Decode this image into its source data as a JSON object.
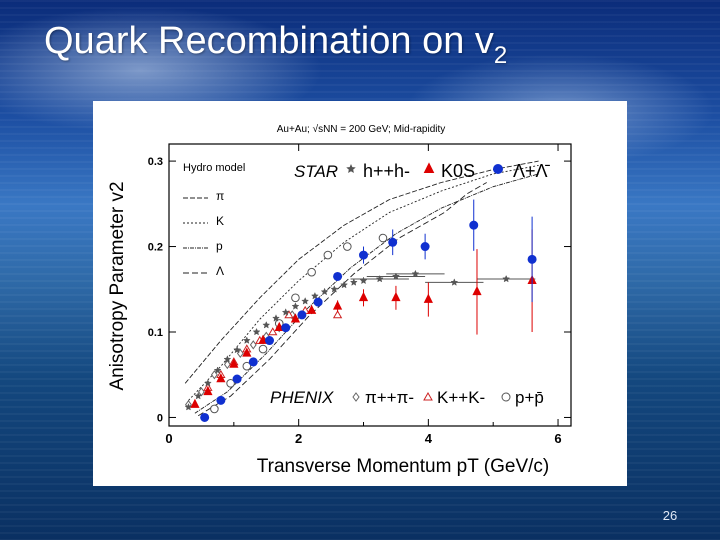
{
  "slide": {
    "title": "Quark Recombination on v",
    "title_subscript": "2",
    "page_number": "26"
  },
  "chart_data": {
    "type": "scatter",
    "header": "Au+Au; √sNN = 200 GeV; Mid-rapidity",
    "xlabel": "Transverse Momentum pT (GeV/c)",
    "ylabel": "Anisotropy Parameter v2",
    "xlim": [
      0,
      6.2
    ],
    "ylim": [
      -0.01,
      0.32
    ],
    "x_ticks": [
      "0",
      "2",
      "4",
      "6"
    ],
    "y_ticks": [
      "0",
      "0.1",
      "0.2",
      "0.3"
    ],
    "legend_star": "STAR",
    "legend_phenix": "PHENIX",
    "hydro": {
      "title": "Hydro model",
      "labels": [
        "π",
        "K",
        "p",
        "Λ"
      ]
    },
    "series": [
      {
        "name": "h++h-",
        "color": "#555555",
        "marker": "star",
        "points": [
          [
            0.3,
            0.012
          ],
          [
            0.45,
            0.025
          ],
          [
            0.6,
            0.04
          ],
          [
            0.75,
            0.055
          ],
          [
            0.9,
            0.068
          ],
          [
            1.05,
            0.079
          ],
          [
            1.2,
            0.09
          ],
          [
            1.35,
            0.1
          ],
          [
            1.5,
            0.108
          ],
          [
            1.65,
            0.116
          ],
          [
            1.8,
            0.123
          ],
          [
            1.95,
            0.13
          ],
          [
            2.1,
            0.136
          ],
          [
            2.25,
            0.142
          ],
          [
            2.4,
            0.147
          ],
          [
            2.55,
            0.15
          ],
          [
            2.7,
            0.155
          ],
          [
            2.85,
            0.158
          ],
          [
            3.0,
            0.16
          ],
          [
            3.25,
            0.162
          ],
          [
            3.5,
            0.165
          ],
          [
            3.8,
            0.168
          ],
          [
            4.4,
            0.158
          ],
          [
            5.2,
            0.162
          ]
        ]
      },
      {
        "name": "K0S",
        "color": "#dd0000",
        "marker": "triangle",
        "points": [
          [
            0.4,
            0.015
          ],
          [
            0.6,
            0.03
          ],
          [
            0.8,
            0.045
          ],
          [
            1.0,
            0.062
          ],
          [
            1.2,
            0.075
          ],
          [
            1.45,
            0.09
          ],
          [
            1.7,
            0.105
          ],
          [
            1.95,
            0.115
          ],
          [
            2.2,
            0.125
          ],
          [
            2.6,
            0.13
          ],
          [
            3.0,
            0.14
          ],
          [
            3.5,
            0.14
          ],
          [
            4.0,
            0.138
          ],
          [
            4.75,
            0.147
          ],
          [
            5.6,
            0.16
          ]
        ],
        "errors": [
          0,
          0,
          0,
          0,
          0,
          0,
          0,
          0,
          0,
          0.007,
          0.01,
          0.014,
          0.02,
          0.05,
          0.06
        ]
      },
      {
        "name": "Λ+Λ̄",
        "color": "#1030d0",
        "marker": "circle",
        "points": [
          [
            0.55,
            0.0
          ],
          [
            0.8,
            0.02
          ],
          [
            1.05,
            0.045
          ],
          [
            1.3,
            0.065
          ],
          [
            1.55,
            0.09
          ],
          [
            1.8,
            0.105
          ],
          [
            2.05,
            0.12
          ],
          [
            2.3,
            0.135
          ],
          [
            2.6,
            0.165
          ],
          [
            3.0,
            0.19
          ],
          [
            3.45,
            0.205
          ],
          [
            3.95,
            0.2
          ],
          [
            4.7,
            0.225
          ],
          [
            5.6,
            0.185
          ]
        ],
        "errors": [
          0,
          0,
          0,
          0,
          0,
          0,
          0,
          0,
          0,
          0.01,
          0.015,
          0.015,
          0.03,
          0.05
        ]
      },
      {
        "name": "π++π-",
        "color": "#666666",
        "marker": "diamond-open",
        "points": [
          [
            0.3,
            0.015
          ],
          [
            0.5,
            0.03
          ],
          [
            0.7,
            0.05
          ],
          [
            0.9,
            0.062
          ],
          [
            1.1,
            0.075
          ],
          [
            1.3,
            0.085
          ],
          [
            1.5,
            0.095
          ],
          [
            1.7,
            0.105
          ],
          [
            1.9,
            0.12
          ]
        ]
      },
      {
        "name": "K++K-",
        "color": "#cc2222",
        "marker": "triangle-open",
        "points": [
          [
            0.6,
            0.035
          ],
          [
            0.8,
            0.05
          ],
          [
            1.0,
            0.065
          ],
          [
            1.2,
            0.08
          ],
          [
            1.4,
            0.09
          ],
          [
            1.6,
            0.1
          ],
          [
            1.85,
            0.12
          ],
          [
            2.1,
            0.125
          ],
          [
            2.6,
            0.12
          ]
        ]
      },
      {
        "name": "p+p̄",
        "color": "#555555",
        "marker": "circle-open",
        "points": [
          [
            0.7,
            0.01
          ],
          [
            0.95,
            0.04
          ],
          [
            1.2,
            0.06
          ],
          [
            1.45,
            0.08
          ],
          [
            1.7,
            0.11
          ],
          [
            1.95,
            0.14
          ],
          [
            2.2,
            0.17
          ],
          [
            2.45,
            0.19
          ],
          [
            2.75,
            0.2
          ],
          [
            3.3,
            0.21
          ]
        ]
      }
    ],
    "hydro_curves": [
      {
        "name": "π",
        "points": [
          [
            0.25,
            0.04
          ],
          [
            0.8,
            0.09
          ],
          [
            1.4,
            0.14
          ],
          [
            2.0,
            0.185
          ],
          [
            2.7,
            0.225
          ],
          [
            3.4,
            0.255
          ],
          [
            4.2,
            0.275
          ],
          [
            5.0,
            0.29
          ],
          [
            5.7,
            0.3
          ]
        ]
      },
      {
        "name": "K",
        "points": [
          [
            0.3,
            0.02
          ],
          [
            0.8,
            0.06
          ],
          [
            1.4,
            0.115
          ],
          [
            2.0,
            0.16
          ],
          [
            2.7,
            0.205
          ],
          [
            3.4,
            0.24
          ],
          [
            4.2,
            0.265
          ],
          [
            5.0,
            0.285
          ],
          [
            5.7,
            0.295
          ]
        ]
      },
      {
        "name": "p",
        "points": [
          [
            0.4,
            0.005
          ],
          [
            0.9,
            0.03
          ],
          [
            1.5,
            0.075
          ],
          [
            2.1,
            0.125
          ],
          [
            2.8,
            0.175
          ],
          [
            3.5,
            0.215
          ],
          [
            4.2,
            0.245
          ],
          [
            5.0,
            0.27
          ],
          [
            5.7,
            0.285
          ]
        ]
      },
      {
        "name": "Λ",
        "points": [
          [
            0.45,
            0.002
          ],
          [
            0.95,
            0.025
          ],
          [
            1.55,
            0.068
          ],
          [
            2.15,
            0.118
          ],
          [
            2.85,
            0.168
          ],
          [
            3.55,
            0.21
          ],
          [
            4.25,
            0.24
          ],
          [
            4.6,
            0.262
          ],
          [
            4.9,
            0.275
          ]
        ]
      }
    ]
  }
}
